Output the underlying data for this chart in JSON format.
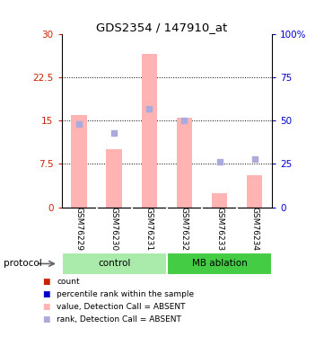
{
  "title": "GDS2354 / 147910_at",
  "samples": [
    "GSM76229",
    "GSM76230",
    "GSM76231",
    "GSM76232",
    "GSM76233",
    "GSM76234"
  ],
  "bar_values": [
    16.0,
    10.0,
    26.5,
    15.5,
    2.5,
    5.5
  ],
  "rank_values_pct": [
    48.0,
    43.0,
    57.0,
    50.0,
    26.0,
    28.0
  ],
  "bar_color": "#FFB3B3",
  "rank_color": "#AAAADD",
  "left_yticks": [
    0,
    7.5,
    15,
    22.5,
    30
  ],
  "right_yticks": [
    0,
    25,
    50,
    75,
    100
  ],
  "right_yticklabels": [
    "0",
    "25",
    "50",
    "75",
    "100%"
  ],
  "left_color": "#CC2200",
  "right_color": "#0000CC",
  "groups": [
    {
      "label": "control",
      "color": "#AAEAAA",
      "darker": "#44CC44"
    },
    {
      "label": "MB ablation",
      "color": "#44CC44",
      "darker": "#22AA22"
    }
  ],
  "protocol_label": "protocol",
  "legend_items": [
    {
      "color": "#CC2200",
      "label": "count"
    },
    {
      "color": "#0000CC",
      "label": "percentile rank within the sample"
    },
    {
      "color": "#FFB3B3",
      "label": "value, Detection Call = ABSENT"
    },
    {
      "color": "#AAAADD",
      "label": "rank, Detection Call = ABSENT"
    }
  ],
  "bg_color": "#FFFFFF",
  "xtick_bg": "#CCCCCC"
}
